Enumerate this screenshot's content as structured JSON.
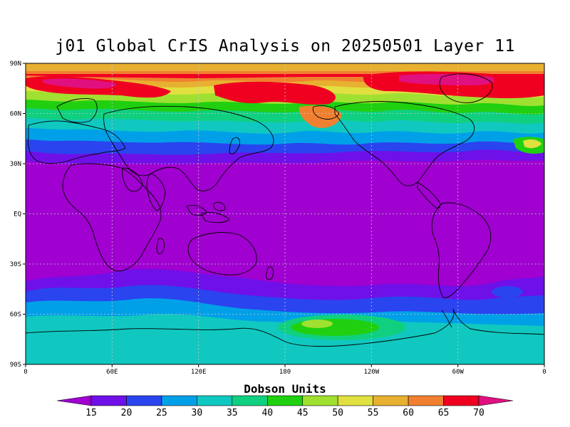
{
  "title": "j01 Global CrIS Analysis on 20250501 Layer 11",
  "lat_ticks": [
    "90N",
    "60N",
    "30N",
    "EQ",
    "30S",
    "60S",
    "90S"
  ],
  "lon_ticks": [
    "0",
    "60E",
    "120E",
    "180",
    "120W",
    "60W",
    "0"
  ],
  "colorbar": {
    "title": "Dobson Units",
    "levels": [
      "15",
      "20",
      "25",
      "30",
      "35",
      "40",
      "45",
      "50",
      "55",
      "60",
      "65",
      "70"
    ],
    "colors": [
      "#a000d0",
      "#6f10e8",
      "#2a44f0",
      "#00a0e8",
      "#10c8c0",
      "#10d080",
      "#20d010",
      "#a0e030",
      "#e0e040",
      "#e8b030",
      "#f08030",
      "#f00020",
      "#e01080"
    ]
  },
  "colors": {
    "low": "#a000d0",
    "mid": "#2a44f0",
    "high": "#f00020",
    "land": "#000000"
  }
}
